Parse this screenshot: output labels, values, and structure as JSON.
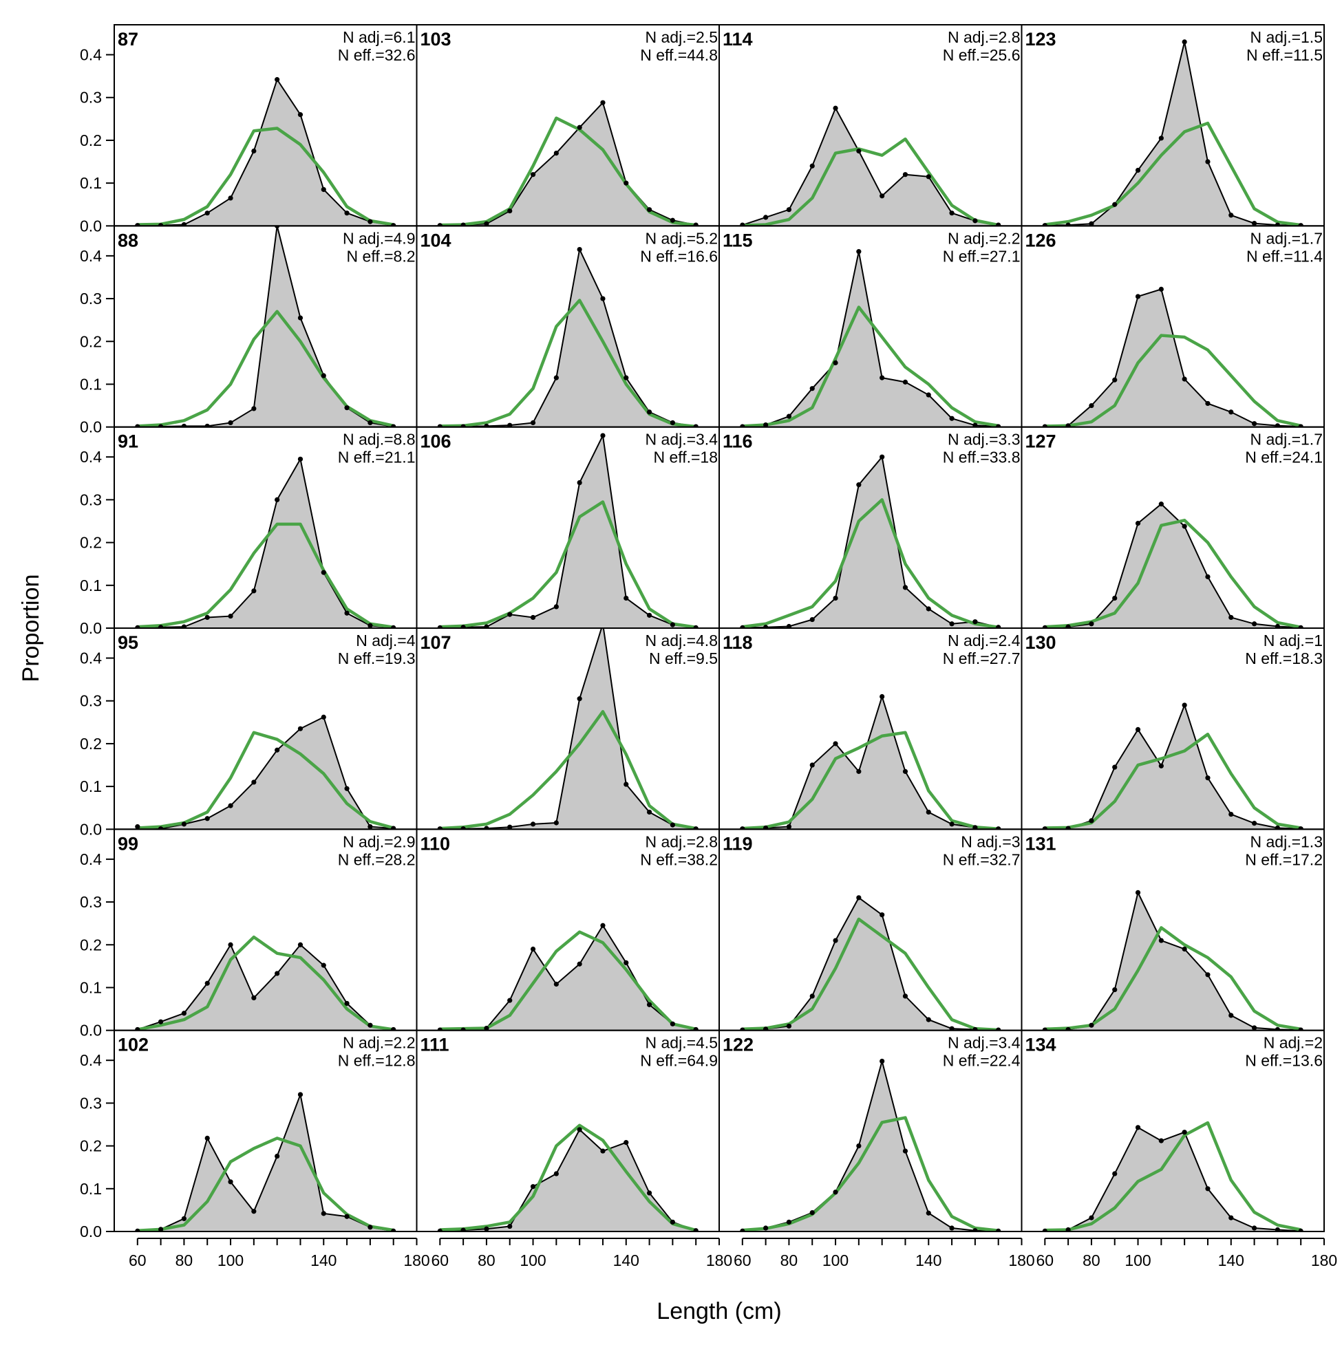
{
  "chart_data": {
    "type": "area",
    "xlabel": "Length (cm)",
    "ylabel": "Proportion",
    "x": [
      60,
      70,
      80,
      90,
      100,
      110,
      120,
      130,
      140,
      150,
      160,
      170
    ],
    "xlim": [
      50,
      180
    ],
    "ylim": [
      0,
      0.47
    ],
    "xticks": [
      60,
      80,
      100,
      140,
      180
    ],
    "yticks": [
      0.0,
      0.1,
      0.2,
      0.3,
      0.4
    ],
    "xtick_labels": [
      "60",
      "80",
      "100",
      "140",
      "180"
    ],
    "ytick_labels": [
      "0.0",
      "0.1",
      "0.2",
      "0.3",
      "0.4"
    ],
    "grid": false,
    "layout": {
      "rows": 6,
      "cols": 4
    },
    "colors": {
      "observed_fill": "#c8c8c8",
      "observed_line": "#000000",
      "expected_line": "#4aa447",
      "zero_line": "#bdbdbd"
    },
    "panels": [
      {
        "id": "87",
        "n_adj": "N adj.=6.1",
        "n_eff": "N eff.=32.6",
        "obs": [
          0.001,
          0.001,
          0.003,
          0.03,
          0.065,
          0.175,
          0.342,
          0.26,
          0.085,
          0.03,
          0.01,
          0.001
        ],
        "exp": [
          0.003,
          0.004,
          0.015,
          0.045,
          0.12,
          0.222,
          0.228,
          0.19,
          0.125,
          0.045,
          0.012,
          0.003
        ]
      },
      {
        "id": "103",
        "n_adj": "N adj.=2.5",
        "n_eff": "N eff.=44.8",
        "obs": [
          0.001,
          0.002,
          0.005,
          0.035,
          0.12,
          0.17,
          0.23,
          0.288,
          0.1,
          0.038,
          0.013,
          0.002
        ],
        "exp": [
          0.002,
          0.003,
          0.01,
          0.04,
          0.14,
          0.252,
          0.225,
          0.178,
          0.098,
          0.033,
          0.008,
          0.002
        ]
      },
      {
        "id": "114",
        "n_adj": "N adj.=2.8",
        "n_eff": "N eff.=25.6",
        "obs": [
          0.002,
          0.02,
          0.038,
          0.14,
          0.275,
          0.175,
          0.07,
          0.12,
          0.115,
          0.03,
          0.012,
          0.002
        ],
        "exp": [
          0.001,
          0.003,
          0.015,
          0.065,
          0.17,
          0.18,
          0.165,
          0.203,
          0.125,
          0.048,
          0.013,
          0.002
        ]
      },
      {
        "id": "123",
        "n_adj": "N adj.=1.5",
        "n_eff": "N eff.=11.5",
        "obs": [
          0.001,
          0.002,
          0.005,
          0.05,
          0.13,
          0.205,
          0.43,
          0.15,
          0.025,
          0.006,
          0.002,
          0.001
        ],
        "exp": [
          0.003,
          0.01,
          0.025,
          0.048,
          0.1,
          0.165,
          0.22,
          0.24,
          0.14,
          0.04,
          0.009,
          0.002
        ]
      },
      {
        "id": "88",
        "n_adj": "N adj.=4.9",
        "n_eff": "N eff.=8.2",
        "obs": [
          0.001,
          0.001,
          0.002,
          0.002,
          0.01,
          0.043,
          0.47,
          0.255,
          0.12,
          0.045,
          0.01,
          0.001
        ],
        "exp": [
          0.002,
          0.005,
          0.015,
          0.04,
          0.1,
          0.205,
          0.27,
          0.2,
          0.115,
          0.048,
          0.015,
          0.003
        ]
      },
      {
        "id": "104",
        "n_adj": "N adj.=5.2",
        "n_eff": "N eff.=16.6",
        "obs": [
          0.001,
          0.001,
          0.002,
          0.004,
          0.01,
          0.115,
          0.415,
          0.3,
          0.115,
          0.035,
          0.01,
          0.001
        ],
        "exp": [
          0.002,
          0.003,
          0.01,
          0.03,
          0.09,
          0.235,
          0.296,
          0.2,
          0.1,
          0.03,
          0.007,
          0.001
        ]
      },
      {
        "id": "115",
        "n_adj": "N adj.=2.2",
        "n_eff": "N eff.=27.1",
        "obs": [
          0.001,
          0.005,
          0.025,
          0.09,
          0.15,
          0.41,
          0.115,
          0.105,
          0.075,
          0.02,
          0.004,
          0.001
        ],
        "exp": [
          0.002,
          0.005,
          0.015,
          0.045,
          0.16,
          0.28,
          0.21,
          0.14,
          0.1,
          0.045,
          0.012,
          0.003
        ]
      },
      {
        "id": "126",
        "n_adj": "N adj.=1.7",
        "n_eff": "N eff.=11.4",
        "obs": [
          0.001,
          0.003,
          0.05,
          0.11,
          0.305,
          0.322,
          0.112,
          0.055,
          0.035,
          0.008,
          0.003,
          0.001
        ],
        "exp": [
          0.002,
          0.003,
          0.012,
          0.05,
          0.15,
          0.214,
          0.21,
          0.18,
          0.12,
          0.06,
          0.015,
          0.003
        ]
      },
      {
        "id": "91",
        "n_adj": "N adj.=8.8",
        "n_eff": "N eff.=21.1",
        "obs": [
          0.001,
          0.002,
          0.003,
          0.025,
          0.028,
          0.087,
          0.3,
          0.395,
          0.13,
          0.035,
          0.006,
          0.001
        ],
        "exp": [
          0.003,
          0.006,
          0.015,
          0.035,
          0.09,
          0.175,
          0.243,
          0.243,
          0.135,
          0.045,
          0.01,
          0.002
        ]
      },
      {
        "id": "106",
        "n_adj": "N adj.=3.4",
        "n_eff": "N eff.=18",
        "obs": [
          0.001,
          0.002,
          0.003,
          0.032,
          0.025,
          0.05,
          0.34,
          0.45,
          0.07,
          0.03,
          0.008,
          0.001
        ],
        "exp": [
          0.003,
          0.005,
          0.012,
          0.035,
          0.07,
          0.13,
          0.26,
          0.295,
          0.15,
          0.045,
          0.01,
          0.002
        ]
      },
      {
        "id": "116",
        "n_adj": "N adj.=3.3",
        "n_eff": "N eff.=33.8",
        "obs": [
          0.001,
          0.002,
          0.004,
          0.02,
          0.07,
          0.335,
          0.4,
          0.095,
          0.045,
          0.01,
          0.015,
          0.002
        ],
        "exp": [
          0.003,
          0.01,
          0.03,
          0.05,
          0.11,
          0.25,
          0.3,
          0.15,
          0.07,
          0.03,
          0.01,
          0.002
        ]
      },
      {
        "id": "127",
        "n_adj": "N adj.=1.7",
        "n_eff": "N eff.=24.1",
        "obs": [
          0.001,
          0.003,
          0.01,
          0.07,
          0.245,
          0.29,
          0.238,
          0.12,
          0.025,
          0.01,
          0.004,
          0.001
        ],
        "exp": [
          0.003,
          0.006,
          0.015,
          0.035,
          0.105,
          0.24,
          0.252,
          0.2,
          0.12,
          0.05,
          0.013,
          0.002
        ]
      },
      {
        "id": "95",
        "n_adj": "N adj.=4",
        "n_eff": "N eff.=19.3",
        "obs": [
          0.006,
          0.001,
          0.012,
          0.025,
          0.055,
          0.11,
          0.185,
          0.235,
          0.262,
          0.095,
          0.006,
          0.002
        ],
        "exp": [
          0.003,
          0.006,
          0.015,
          0.04,
          0.12,
          0.226,
          0.21,
          0.176,
          0.13,
          0.06,
          0.018,
          0.003
        ]
      },
      {
        "id": "107",
        "n_adj": "N adj.=4.8",
        "n_eff": "N eff.=9.5",
        "obs": [
          0.001,
          0.001,
          0.002,
          0.005,
          0.012,
          0.015,
          0.305,
          0.48,
          0.105,
          0.04,
          0.01,
          0.001
        ],
        "exp": [
          0.002,
          0.005,
          0.012,
          0.035,
          0.08,
          0.135,
          0.2,
          0.275,
          0.175,
          0.055,
          0.012,
          0.002
        ]
      },
      {
        "id": "118",
        "n_adj": "N adj.=2.4",
        "n_eff": "N eff.=27.7",
        "obs": [
          0.001,
          0.003,
          0.006,
          0.15,
          0.2,
          0.135,
          0.31,
          0.135,
          0.04,
          0.012,
          0.004,
          0.001
        ],
        "exp": [
          0.002,
          0.005,
          0.017,
          0.07,
          0.165,
          0.19,
          0.218,
          0.226,
          0.09,
          0.02,
          0.005,
          0.001
        ]
      },
      {
        "id": "130",
        "n_adj": "N adj.=1",
        "n_eff": "N eff.=18.3",
        "obs": [
          0.001,
          0.002,
          0.02,
          0.145,
          0.233,
          0.148,
          0.29,
          0.12,
          0.035,
          0.014,
          0.003,
          0.001
        ],
        "exp": [
          0.003,
          0.004,
          0.015,
          0.065,
          0.15,
          0.165,
          0.183,
          0.222,
          0.13,
          0.05,
          0.012,
          0.003
        ]
      },
      {
        "id": "99",
        "n_adj": "N adj.=2.9",
        "n_eff": "N eff.=28.2",
        "obs": [
          0.002,
          0.02,
          0.04,
          0.11,
          0.2,
          0.076,
          0.133,
          0.2,
          0.152,
          0.063,
          0.012,
          0.002
        ],
        "exp": [
          0.002,
          0.012,
          0.025,
          0.055,
          0.165,
          0.218,
          0.18,
          0.17,
          0.118,
          0.05,
          0.01,
          0.002
        ]
      },
      {
        "id": "110",
        "n_adj": "N adj.=2.8",
        "n_eff": "N eff.=38.2",
        "obs": [
          0.001,
          0.001,
          0.005,
          0.07,
          0.19,
          0.108,
          0.155,
          0.245,
          0.158,
          0.06,
          0.015,
          0.002
        ],
        "exp": [
          0.003,
          0.004,
          0.005,
          0.035,
          0.11,
          0.185,
          0.23,
          0.205,
          0.142,
          0.07,
          0.015,
          0.003
        ]
      },
      {
        "id": "119",
        "n_adj": "N adj.=3",
        "n_eff": "N eff.=32.7",
        "obs": [
          0.001,
          0.003,
          0.01,
          0.08,
          0.21,
          0.31,
          0.27,
          0.08,
          0.025,
          0.004,
          0.002,
          0.001
        ],
        "exp": [
          0.003,
          0.005,
          0.015,
          0.05,
          0.145,
          0.26,
          0.22,
          0.18,
          0.1,
          0.025,
          0.004,
          0.001
        ]
      },
      {
        "id": "131",
        "n_adj": "N adj.=1.3",
        "n_eff": "N eff.=17.2",
        "obs": [
          0.001,
          0.002,
          0.012,
          0.095,
          0.322,
          0.21,
          0.19,
          0.13,
          0.035,
          0.006,
          0.002,
          0.001
        ],
        "exp": [
          0.003,
          0.005,
          0.012,
          0.05,
          0.14,
          0.24,
          0.2,
          0.17,
          0.125,
          0.045,
          0.012,
          0.003
        ]
      },
      {
        "id": "102",
        "n_adj": "N adj.=2.2",
        "n_eff": "N eff.=12.8",
        "obs": [
          0.001,
          0.005,
          0.03,
          0.218,
          0.116,
          0.047,
          0.176,
          0.32,
          0.042,
          0.035,
          0.01,
          0.001
        ],
        "exp": [
          0.002,
          0.005,
          0.015,
          0.07,
          0.163,
          0.194,
          0.218,
          0.2,
          0.09,
          0.04,
          0.012,
          0.003
        ]
      },
      {
        "id": "111",
        "n_adj": "N adj.=4.5",
        "n_eff": "N eff.=64.9",
        "obs": [
          0.001,
          0.003,
          0.006,
          0.012,
          0.105,
          0.135,
          0.238,
          0.188,
          0.208,
          0.09,
          0.022,
          0.002
        ],
        "exp": [
          0.004,
          0.006,
          0.012,
          0.022,
          0.082,
          0.2,
          0.248,
          0.213,
          0.14,
          0.07,
          0.018,
          0.003
        ]
      },
      {
        "id": "122",
        "n_adj": "N adj.=3.4",
        "n_eff": "N eff.=22.4",
        "obs": [
          0.001,
          0.008,
          0.022,
          0.044,
          0.092,
          0.2,
          0.398,
          0.188,
          0.043,
          0.008,
          0.002,
          0.001
        ],
        "exp": [
          0.003,
          0.007,
          0.018,
          0.04,
          0.09,
          0.16,
          0.255,
          0.266,
          0.12,
          0.035,
          0.008,
          0.002
        ]
      },
      {
        "id": "134",
        "n_adj": "N adj.=2",
        "n_eff": "N eff.=13.6",
        "obs": [
          0.001,
          0.004,
          0.032,
          0.135,
          0.243,
          0.212,
          0.232,
          0.1,
          0.032,
          0.008,
          0.004,
          0.001
        ],
        "exp": [
          0.003,
          0.004,
          0.018,
          0.055,
          0.117,
          0.145,
          0.225,
          0.254,
          0.12,
          0.045,
          0.015,
          0.004
        ]
      }
    ]
  }
}
